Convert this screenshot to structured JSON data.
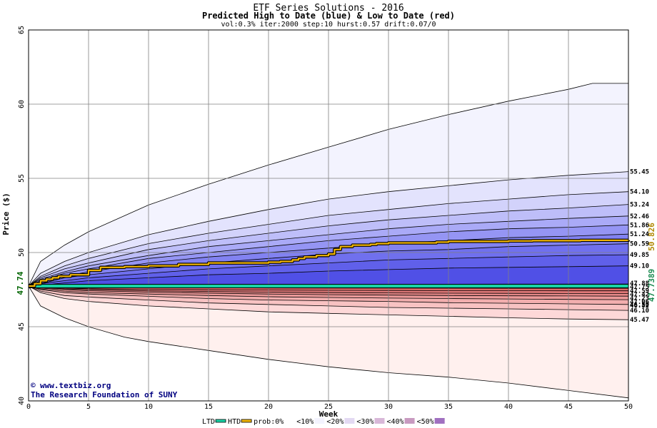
{
  "chart_data": {
    "type": "area",
    "title": "ETF Series Solutions - 2016",
    "subtitle": "Predicted High to Date (blue) &  Low to Date (red)",
    "params": "vol:0.3% iter:2000 step:10 hurst:0.57 drift:0.07/0",
    "xlabel": "Week",
    "ylabel": "Price ($)",
    "xlim": [
      0,
      50
    ],
    "ylim": [
      40,
      65
    ],
    "x_ticks": [
      0,
      5,
      10,
      15,
      20,
      25,
      30,
      35,
      40,
      45,
      50
    ],
    "y_ticks": [
      40,
      45,
      50,
      55,
      60,
      65
    ],
    "start_label": "47.74",
    "start_value": 47.74,
    "ltd_last_label": "47.7389",
    "htd_last_label": "50.826",
    "grid": true,
    "credit_line1": "www.textbiz.org",
    "credit_line2": "The Research Foundation of SUNY",
    "credit_symbol": "©",
    "high_band_labels": [
      "55.45",
      "54.10",
      "53.24",
      "52.46",
      "51.86",
      "51.24",
      "50.59",
      "49.85",
      "49.10"
    ],
    "low_band_labels": [
      "47.88",
      "47.75",
      "47.59",
      "47.42",
      "47.23",
      "47.06",
      "46.82",
      "46.50",
      "46.10",
      "45.47"
    ],
    "high_bands": [
      {
        "name": "envelope",
        "x": [
          0,
          1,
          3,
          5,
          10,
          15,
          20,
          25,
          30,
          35,
          40,
          45,
          47,
          50
        ],
        "y": [
          47.74,
          49.4,
          50.5,
          51.4,
          53.2,
          54.6,
          55.9,
          57.1,
          58.3,
          59.3,
          60.2,
          61.0,
          61.4,
          61.4
        ]
      },
      {
        "name": "55.45",
        "x": [
          0,
          1,
          3,
          5,
          10,
          15,
          20,
          25,
          30,
          35,
          40,
          45,
          50
        ],
        "y": [
          47.74,
          48.6,
          49.4,
          50.0,
          51.2,
          52.1,
          52.9,
          53.6,
          54.1,
          54.5,
          54.9,
          55.2,
          55.45
        ]
      },
      {
        "name": "54.10",
        "x": [
          0,
          1,
          3,
          5,
          10,
          15,
          20,
          25,
          30,
          35,
          40,
          45,
          50
        ],
        "y": [
          47.74,
          48.4,
          49.1,
          49.6,
          50.6,
          51.3,
          51.9,
          52.5,
          52.9,
          53.3,
          53.6,
          53.9,
          54.1
        ]
      },
      {
        "name": "53.24",
        "x": [
          0,
          1,
          3,
          5,
          10,
          15,
          20,
          25,
          30,
          35,
          40,
          45,
          50
        ],
        "y": [
          47.74,
          48.3,
          48.9,
          49.3,
          50.2,
          50.8,
          51.3,
          51.8,
          52.2,
          52.5,
          52.8,
          53.0,
          53.24
        ]
      },
      {
        "name": "52.46",
        "x": [
          0,
          1,
          3,
          5,
          10,
          15,
          20,
          25,
          30,
          35,
          40,
          45,
          50
        ],
        "y": [
          47.74,
          48.2,
          48.7,
          49.1,
          49.8,
          50.4,
          50.8,
          51.2,
          51.6,
          51.9,
          52.1,
          52.3,
          52.46
        ]
      },
      {
        "name": "51.86",
        "x": [
          0,
          1,
          3,
          5,
          10,
          15,
          20,
          25,
          30,
          35,
          40,
          45,
          50
        ],
        "y": [
          47.74,
          48.1,
          48.6,
          48.9,
          49.6,
          50.0,
          50.4,
          50.8,
          51.1,
          51.4,
          51.6,
          51.7,
          51.86
        ]
      },
      {
        "name": "51.24",
        "x": [
          0,
          1,
          3,
          5,
          10,
          15,
          20,
          25,
          30,
          35,
          40,
          45,
          50
        ],
        "y": [
          47.74,
          48.0,
          48.4,
          48.7,
          49.3,
          49.7,
          50.0,
          50.3,
          50.6,
          50.8,
          51.0,
          51.1,
          51.24
        ]
      },
      {
        "name": "50.59",
        "x": [
          0,
          1,
          3,
          5,
          10,
          15,
          20,
          25,
          30,
          35,
          40,
          45,
          50
        ],
        "y": [
          47.74,
          47.9,
          48.3,
          48.5,
          48.9,
          49.3,
          49.6,
          49.9,
          50.1,
          50.2,
          50.4,
          50.5,
          50.59
        ]
      },
      {
        "name": "49.85",
        "x": [
          0,
          1,
          3,
          5,
          10,
          15,
          20,
          25,
          30,
          35,
          40,
          45,
          50
        ],
        "y": [
          47.74,
          47.9,
          48.1,
          48.3,
          48.6,
          48.9,
          49.1,
          49.3,
          49.5,
          49.6,
          49.7,
          49.8,
          49.85
        ]
      },
      {
        "name": "49.10",
        "x": [
          0,
          1,
          3,
          5,
          10,
          15,
          20,
          25,
          30,
          35,
          40,
          45,
          50
        ],
        "y": [
          47.74,
          47.8,
          47.95,
          48.1,
          48.3,
          48.5,
          48.6,
          48.75,
          48.85,
          48.95,
          49.0,
          49.05,
          49.1
        ]
      }
    ],
    "low_bands": [
      {
        "name": "envelope",
        "x": [
          0,
          1,
          3,
          5,
          8,
          10,
          15,
          20,
          25,
          30,
          35,
          40,
          45,
          50
        ],
        "y": [
          47.74,
          46.4,
          45.6,
          45.0,
          44.3,
          44.0,
          43.4,
          42.8,
          42.3,
          41.9,
          41.6,
          41.2,
          40.7,
          40.2
        ]
      },
      {
        "name": "45.47",
        "x": [
          0,
          1,
          3,
          5,
          10,
          15,
          20,
          25,
          30,
          35,
          40,
          45,
          50
        ],
        "y": [
          47.74,
          47.3,
          46.9,
          46.7,
          46.4,
          46.2,
          46.0,
          45.9,
          45.8,
          45.7,
          45.6,
          45.52,
          45.47
        ]
      },
      {
        "name": "46.10",
        "x": [
          0,
          1,
          3,
          5,
          10,
          15,
          20,
          25,
          30,
          35,
          40,
          45,
          50
        ],
        "y": [
          47.74,
          47.4,
          47.1,
          47.0,
          46.8,
          46.6,
          46.5,
          46.4,
          46.3,
          46.25,
          46.2,
          46.15,
          46.1
        ]
      },
      {
        "name": "46.50",
        "x": [
          0,
          1,
          3,
          5,
          10,
          15,
          20,
          25,
          30,
          35,
          40,
          45,
          50
        ],
        "y": [
          47.74,
          47.5,
          47.3,
          47.2,
          47.05,
          46.9,
          46.8,
          46.75,
          46.7,
          46.62,
          46.58,
          46.54,
          46.5
        ]
      },
      {
        "name": "46.82",
        "x": [
          0,
          1,
          3,
          5,
          10,
          15,
          20,
          25,
          30,
          35,
          40,
          45,
          50
        ],
        "y": [
          47.74,
          47.55,
          47.4,
          47.3,
          47.2,
          47.1,
          47.02,
          46.97,
          46.93,
          46.9,
          46.87,
          46.84,
          46.82
        ]
      },
      {
        "name": "47.06",
        "x": [
          0,
          1,
          3,
          5,
          10,
          15,
          20,
          25,
          30,
          35,
          40,
          45,
          50
        ],
        "y": [
          47.74,
          47.6,
          47.5,
          47.42,
          47.33,
          47.26,
          47.2,
          47.16,
          47.13,
          47.1,
          47.08,
          47.07,
          47.06
        ]
      },
      {
        "name": "47.23",
        "x": [
          0,
          1,
          3,
          5,
          10,
          15,
          20,
          25,
          30,
          35,
          40,
          45,
          50
        ],
        "y": [
          47.74,
          47.65,
          47.55,
          47.5,
          47.42,
          47.37,
          47.33,
          47.3,
          47.28,
          47.26,
          47.25,
          47.24,
          47.23
        ]
      },
      {
        "name": "47.42",
        "x": [
          0,
          1,
          3,
          5,
          10,
          15,
          20,
          25,
          30,
          35,
          40,
          45,
          50
        ],
        "y": [
          47.74,
          47.68,
          47.6,
          47.56,
          47.52,
          47.49,
          47.47,
          47.45,
          47.44,
          47.43,
          47.43,
          47.42,
          47.42
        ]
      },
      {
        "name": "47.59",
        "x": [
          0,
          5,
          10,
          20,
          30,
          40,
          50
        ],
        "y": [
          47.74,
          47.66,
          47.63,
          47.61,
          47.6,
          47.59,
          47.59
        ]
      },
      {
        "name": "47.75",
        "x": [
          0,
          10,
          20,
          30,
          40,
          50
        ],
        "y": [
          47.74,
          47.74,
          47.74,
          47.75,
          47.75,
          47.75
        ]
      },
      {
        "name": "47.88",
        "x": [
          0,
          10,
          20,
          30,
          40,
          50
        ],
        "y": [
          47.74,
          47.8,
          47.84,
          47.86,
          47.87,
          47.88
        ]
      }
    ],
    "htd_path": {
      "x": [
        0,
        0.5,
        1,
        1.5,
        2,
        2.5,
        3,
        3.5,
        4,
        4.5,
        5,
        6,
        8,
        10,
        12,
        12.5,
        13,
        15,
        16,
        18,
        20,
        21,
        22,
        22.5,
        23,
        24,
        25,
        25.5,
        26,
        27,
        28,
        28.5,
        29,
        30,
        34,
        35,
        36,
        40,
        42,
        44,
        46,
        48,
        50
      ],
      "y": [
        47.74,
        47.9,
        48.1,
        48.2,
        48.3,
        48.4,
        48.4,
        48.5,
        48.5,
        48.5,
        48.8,
        49.0,
        49.05,
        49.1,
        49.1,
        49.2,
        49.2,
        49.3,
        49.3,
        49.3,
        49.35,
        49.4,
        49.5,
        49.6,
        49.7,
        49.8,
        49.9,
        50.2,
        50.4,
        50.5,
        50.5,
        50.55,
        50.6,
        50.65,
        50.7,
        50.75,
        50.75,
        50.78,
        50.8,
        50.8,
        50.82,
        50.82,
        50.83
      ]
    },
    "ltd_path": {
      "x": [
        0,
        10,
        20,
        30,
        40,
        50
      ],
      "y": [
        47.74,
        47.74,
        47.74,
        47.74,
        47.74,
        47.74
      ]
    },
    "colors": {
      "high_fill": [
        "#f3f3fe",
        "#e3e3fd",
        "#d2d2fb",
        "#bebef9",
        "#aaaaf7",
        "#9595f4",
        "#8282f1",
        "#7070ee",
        "#6060ea",
        "#5050e6"
      ],
      "low_fill": [
        "#fff0ee",
        "#fdd8d8",
        "#f8c2c2",
        "#f2aeae",
        "#ec9a9a",
        "#e68888",
        "#e07878",
        "#da6a6a",
        "#d45e5e",
        "#ce5454",
        "#c84c4c"
      ],
      "htd_line": "#f0b400",
      "htd_outline": "#000000",
      "ltd_line": "#19d3a6",
      "htd_label": "#b08800",
      "ltd_label": "#1a8a50",
      "start_label": "#006400",
      "grid": "#808080"
    },
    "legend": [
      {
        "label": "LTD",
        "swatch": "#19d3a6",
        "kind": "line"
      },
      {
        "label": "HTD",
        "swatch": "#f0b400",
        "kind": "line"
      },
      {
        "label": "prob:0%",
        "swatch": "#ffffff",
        "kind": "box"
      },
      {
        "label": "<10%",
        "swatch": "#f3f3fe",
        "kind": "box"
      },
      {
        "label": "<20%",
        "swatch": "#e3d9f2",
        "kind": "box"
      },
      {
        "label": "<30%",
        "swatch": "#d8b8d8",
        "kind": "box"
      },
      {
        "label": "<40%",
        "swatch": "#c89ac0",
        "kind": "box"
      },
      {
        "label": "<50%",
        "swatch": "#a070c0",
        "kind": "box"
      }
    ]
  }
}
